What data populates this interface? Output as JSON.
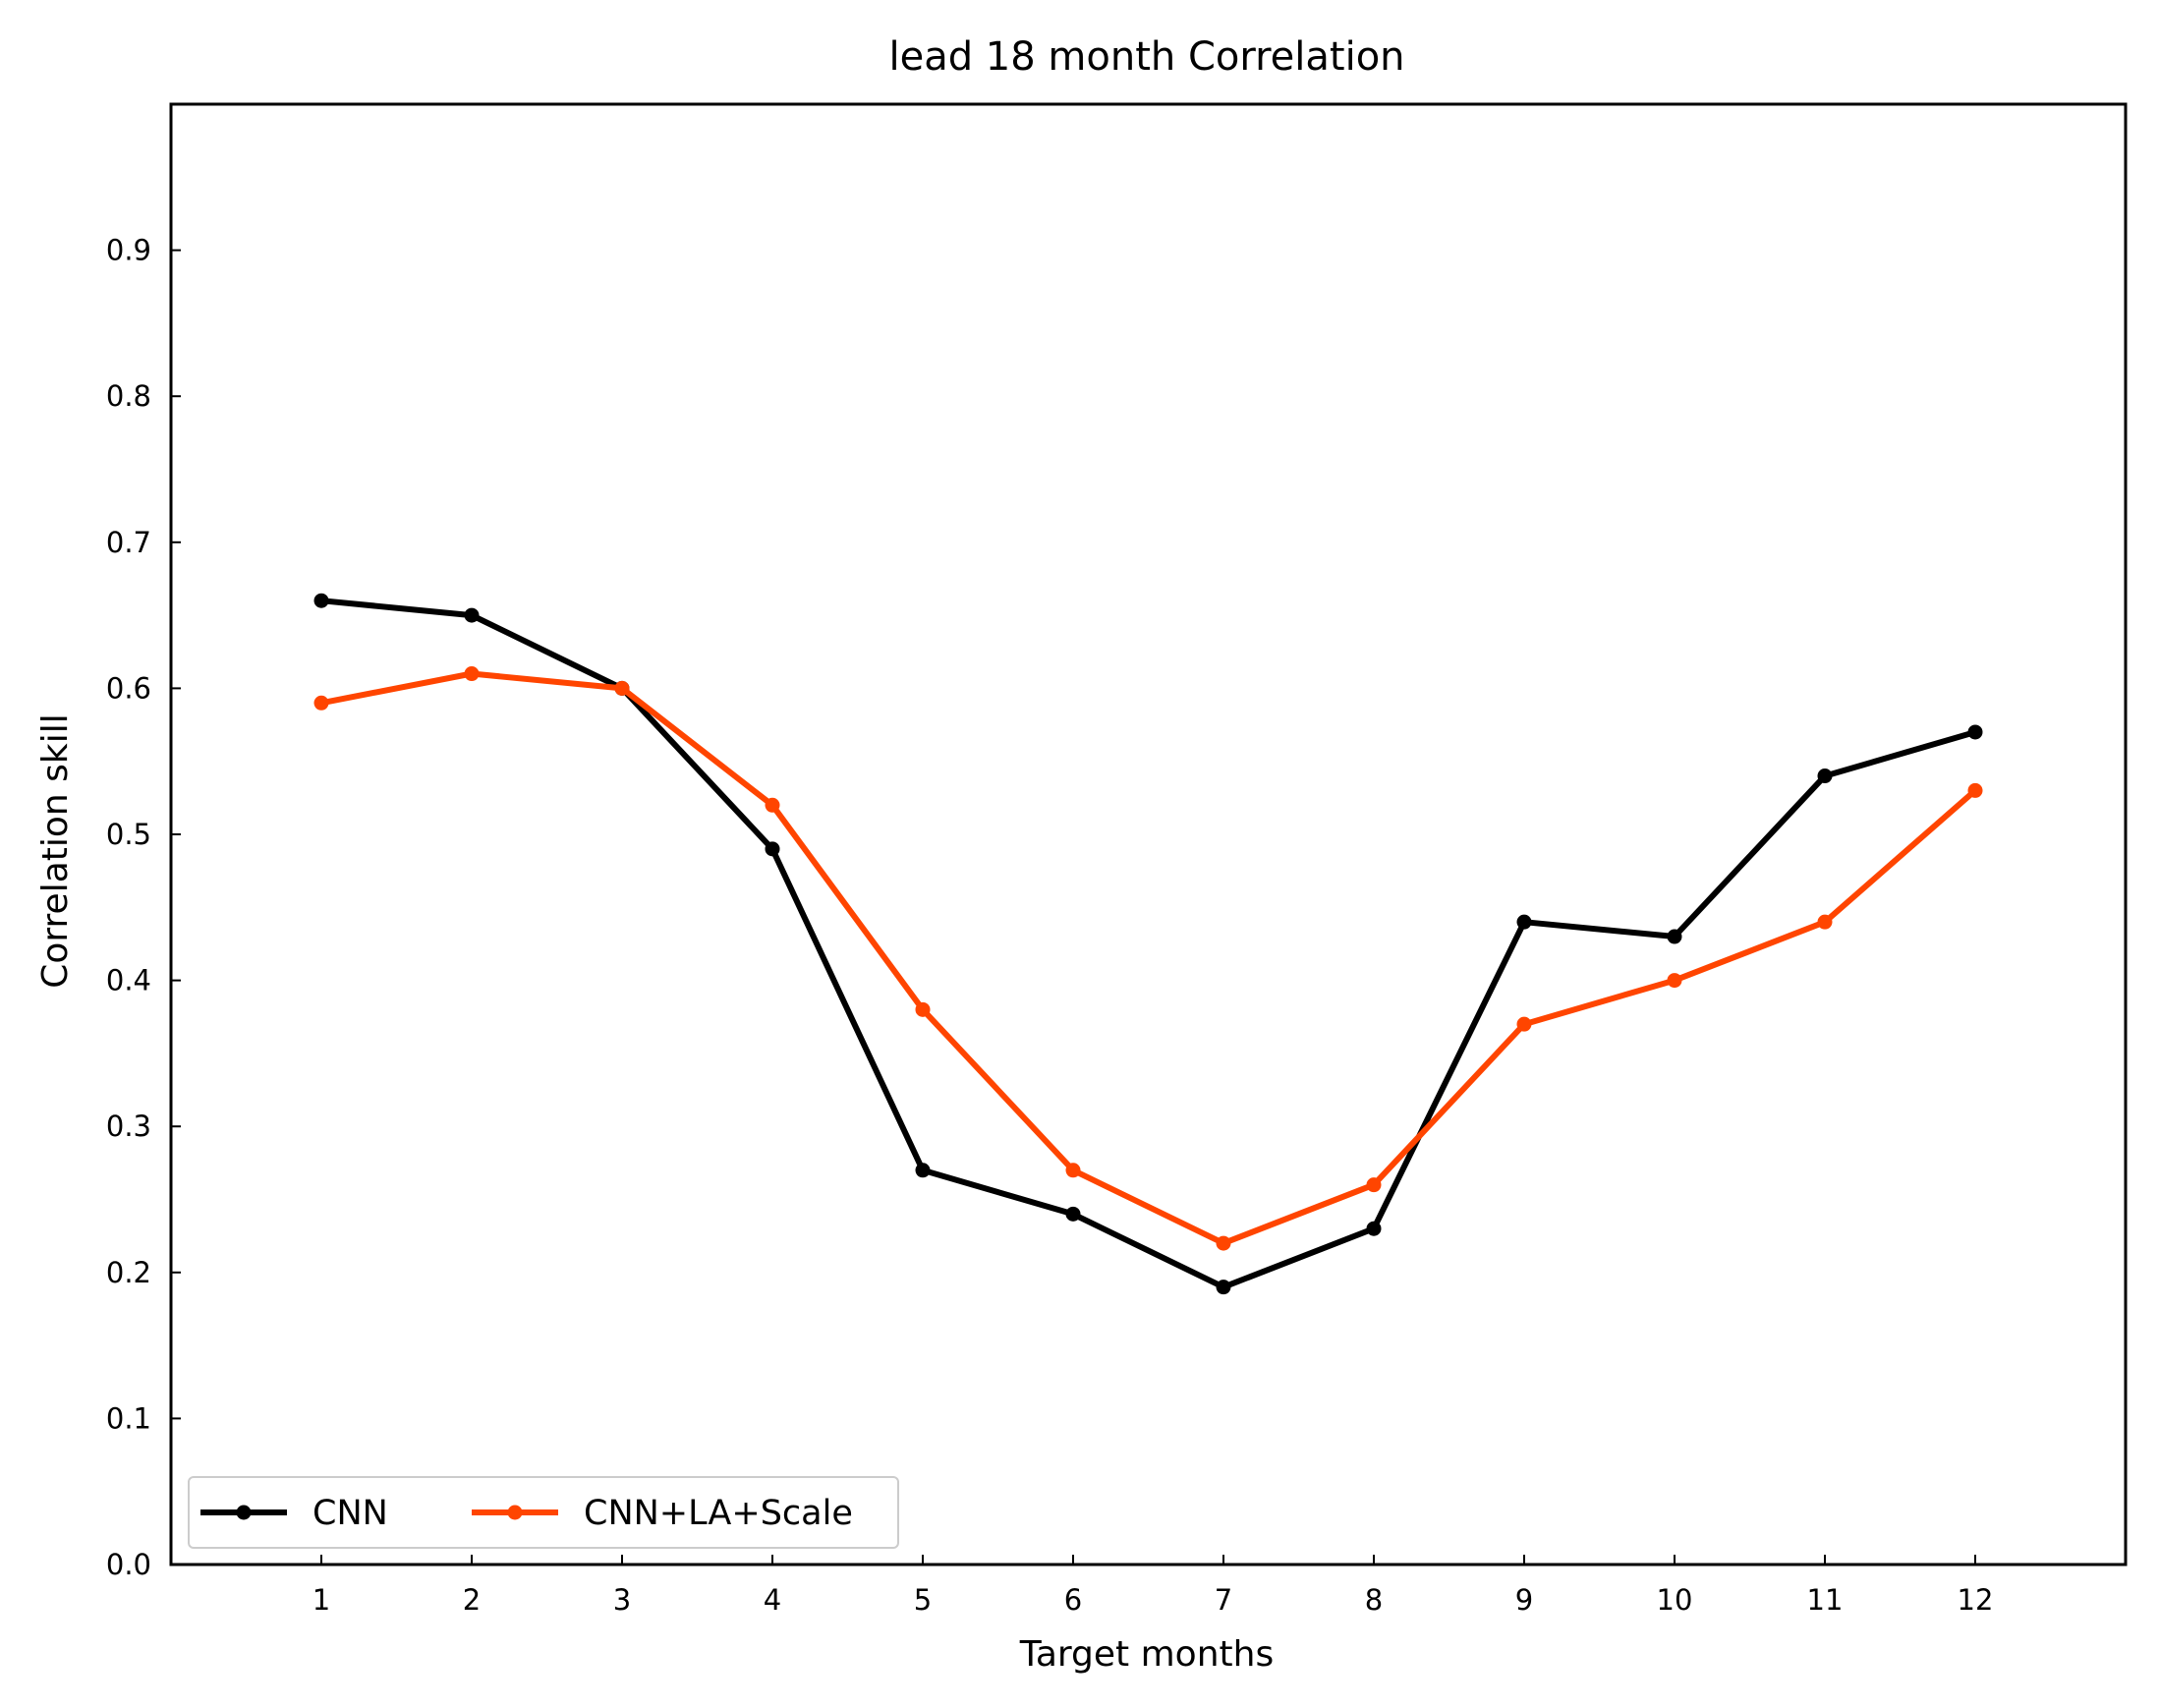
{
  "chart_data": {
    "type": "line",
    "title": "lead 18 month Correlation",
    "xlabel": "Target months",
    "ylabel": "Correlation skill",
    "x": [
      1,
      2,
      3,
      4,
      5,
      6,
      7,
      8,
      9,
      10,
      11,
      12
    ],
    "xlim": [
      0,
      13
    ],
    "ylim": [
      0,
      1.0
    ],
    "xticks": [
      "1",
      "2",
      "3",
      "4",
      "5",
      "6",
      "7",
      "8",
      "9",
      "10",
      "11",
      "12"
    ],
    "yticks": [
      "0.0",
      "0.1",
      "0.2",
      "0.3",
      "0.4",
      "0.5",
      "0.6",
      "0.7",
      "0.8",
      "0.9"
    ],
    "grid": false,
    "legend_position": "lower-left",
    "series": [
      {
        "name": "CNN",
        "color": "#000000",
        "marker": "circle",
        "values": [
          0.66,
          0.65,
          0.6,
          0.49,
          0.27,
          0.24,
          0.19,
          0.23,
          0.44,
          0.43,
          0.54,
          0.57
        ]
      },
      {
        "name": "CNN+LA+Scale",
        "color": "#FF4500",
        "marker": "circle",
        "values": [
          0.59,
          0.61,
          0.6,
          0.52,
          0.38,
          0.27,
          0.22,
          0.26,
          0.37,
          0.4,
          0.44,
          0.53
        ]
      }
    ]
  }
}
